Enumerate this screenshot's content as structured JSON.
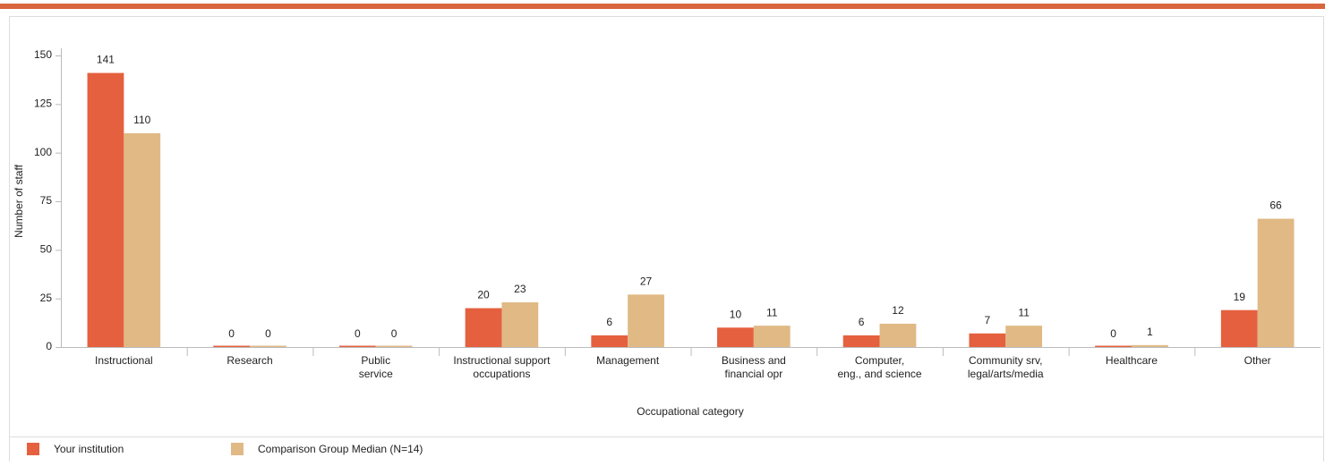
{
  "chart_data": {
    "type": "bar",
    "categories": [
      "Instructional",
      "Research",
      "Public\nservice",
      "Instructional support\noccupations",
      "Management",
      "Business and\nfinancial opr",
      "Computer,\neng., and science",
      "Community srv,\nlegal/arts/media",
      "Healthcare",
      "Other"
    ],
    "series": [
      {
        "name": "Your institution",
        "color": "#e5603e",
        "values": [
          141,
          0,
          0,
          20,
          6,
          10,
          6,
          7,
          0,
          19
        ]
      },
      {
        "name": "Comparison Group Median (N=14)",
        "color": "#e0b985",
        "values": [
          110,
          0,
          0,
          23,
          27,
          11,
          12,
          11,
          1,
          66
        ]
      }
    ],
    "ylim": [
      0,
      150
    ],
    "yticks": [
      0,
      25,
      50,
      75,
      100,
      125,
      150
    ],
    "ylabel": "Number of staff",
    "xlabel": "Occupational category",
    "grid": false
  }
}
